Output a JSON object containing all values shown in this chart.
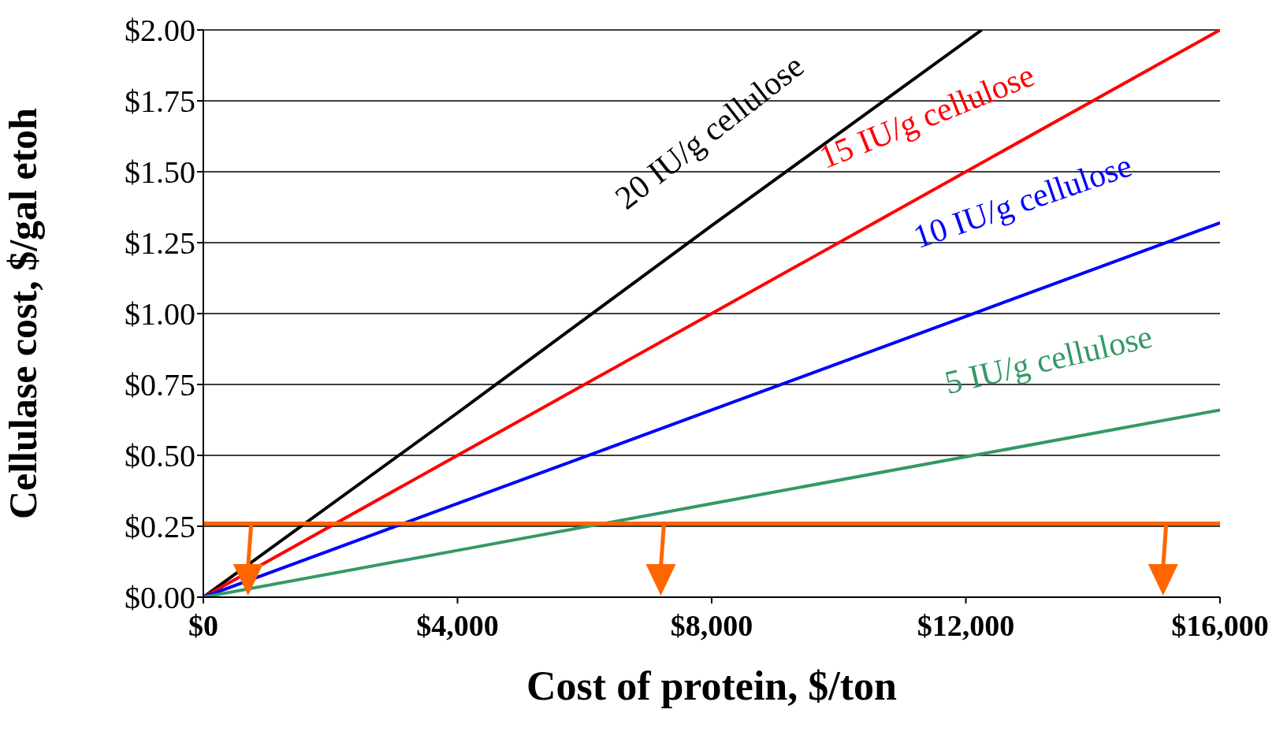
{
  "chart_data": {
    "type": "line",
    "xlabel": "Cost of protein, $/ton",
    "ylabel": "Cellulase cost, $/gal etoh",
    "xlim": [
      0,
      16000
    ],
    "ylim": [
      0,
      2
    ],
    "xticks": [
      {
        "value": 0,
        "label": "$0"
      },
      {
        "value": 4000,
        "label": "$4,000"
      },
      {
        "value": 8000,
        "label": "$8,000"
      },
      {
        "value": 12000,
        "label": "$12,000"
      },
      {
        "value": 16000,
        "label": "$16,000"
      }
    ],
    "yticks": [
      {
        "value": 0,
        "label": "$0.00"
      },
      {
        "value": 0.25,
        "label": "$0.25"
      },
      {
        "value": 0.5,
        "label": "$0.50"
      },
      {
        "value": 0.75,
        "label": "$0.75"
      },
      {
        "value": 1,
        "label": "$1.00"
      },
      {
        "value": 1.25,
        "label": "$1.25"
      },
      {
        "value": 1.5,
        "label": "$1.50"
      },
      {
        "value": 1.75,
        "label": "$1.75"
      },
      {
        "value": 2,
        "label": "$2.00"
      }
    ],
    "grid": "y",
    "marker": "none",
    "line_style": "solid",
    "series": [
      {
        "name": "20 IU/g cellulose",
        "color": "#000000",
        "x": [
          0,
          4000,
          8000,
          12250
        ],
        "values": [
          0,
          0.65,
          1.31,
          2.0
        ]
      },
      {
        "name": "15 IU/g cellulose",
        "color": "#ff0000",
        "x": [
          0,
          4000,
          8000,
          12000,
          16000
        ],
        "values": [
          0,
          0.5,
          1.0,
          1.5,
          2.0
        ]
      },
      {
        "name": "10 IU/g cellulose",
        "color": "#0000ff",
        "x": [
          0,
          4000,
          8000,
          12000,
          16000
        ],
        "values": [
          0,
          0.33,
          0.66,
          0.99,
          1.32
        ]
      },
      {
        "name": "5 IU/g cellulose",
        "color": "#339966",
        "x": [
          0,
          4000,
          8000,
          12000,
          16000
        ],
        "values": [
          0,
          0.165,
          0.33,
          0.495,
          0.66
        ]
      }
    ],
    "ref_lines": [
      {
        "axis": "y",
        "value": 0.26,
        "color": "#ff6600",
        "line_style": "solid"
      }
    ]
  }
}
